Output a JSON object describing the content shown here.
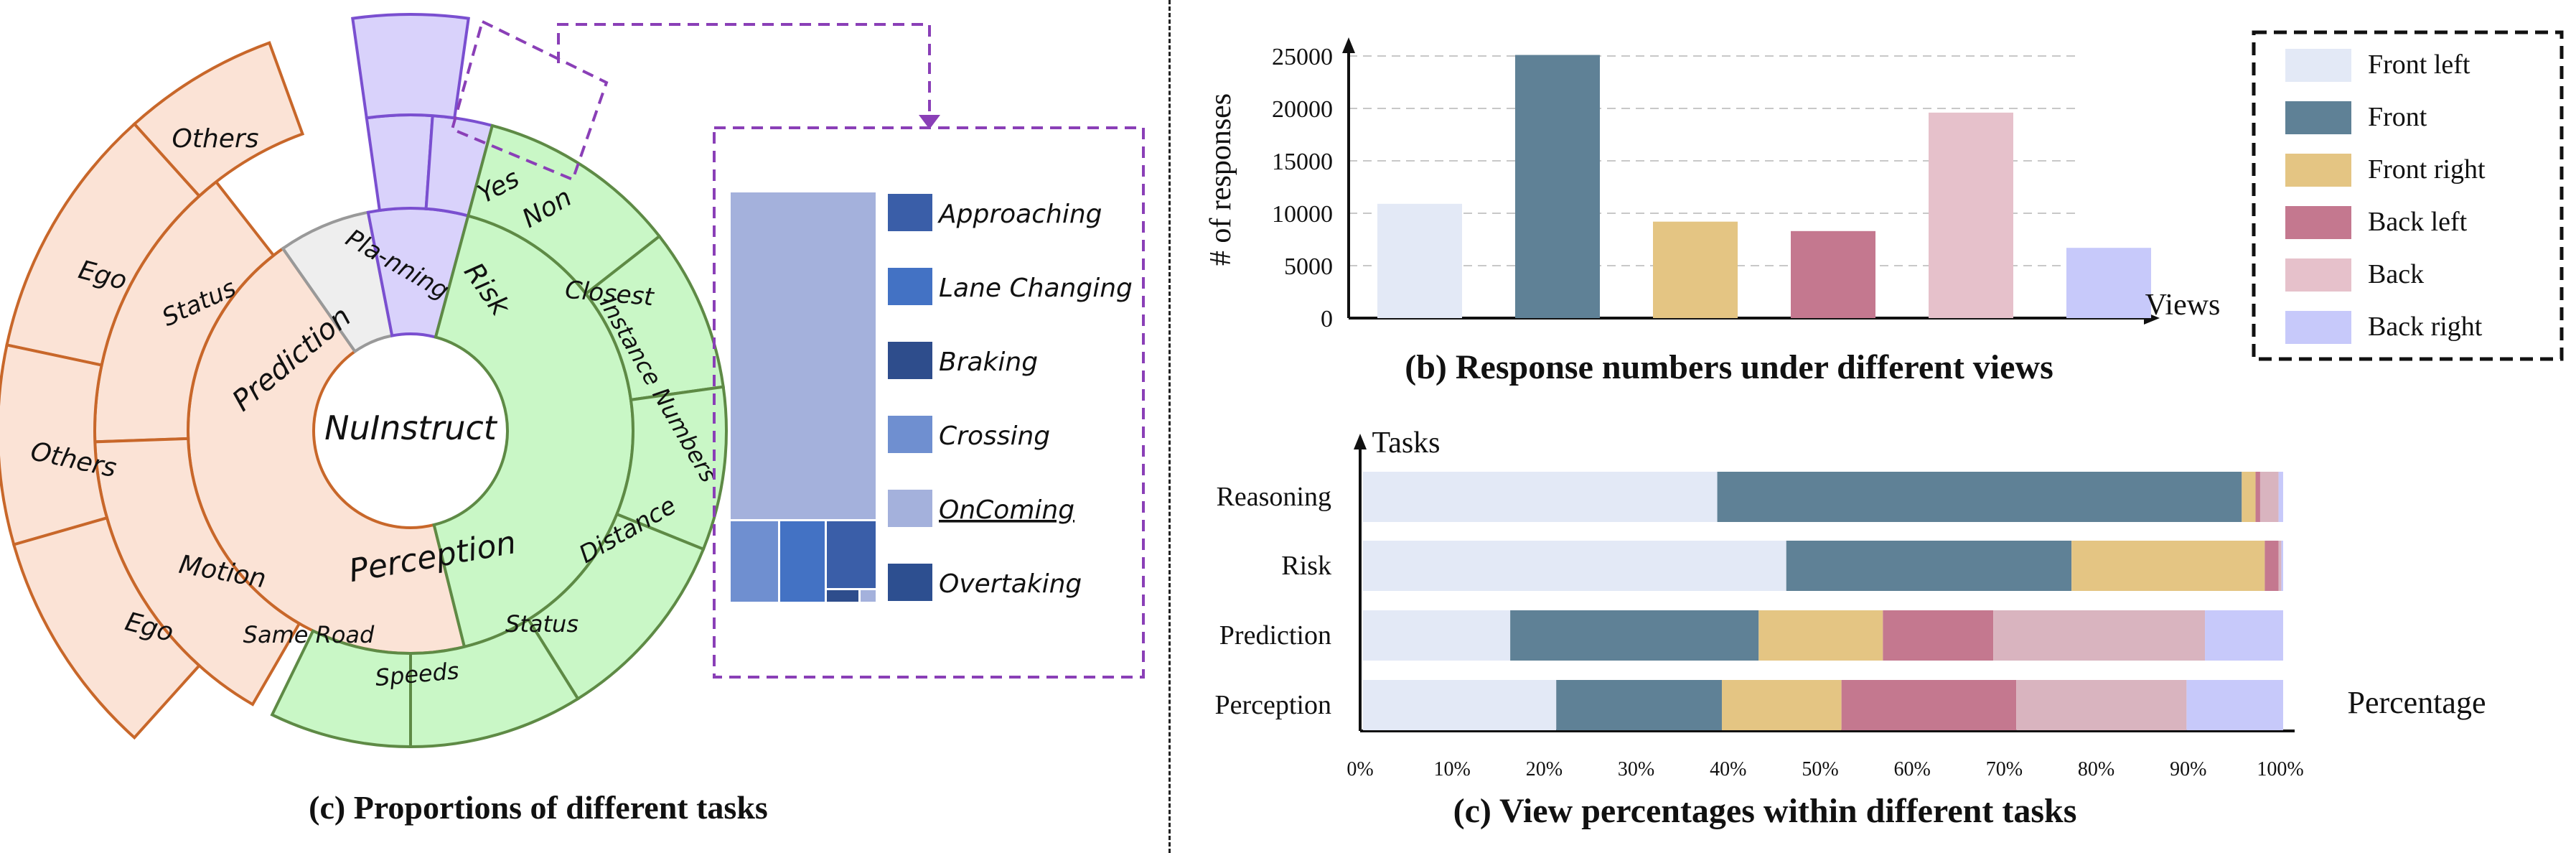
{
  "panel_left": {
    "caption": "(c) Proportions of different tasks",
    "center_label": "NuInstruct",
    "inner_ring": [
      "Prediction",
      "Pla-nning",
      "Risk",
      "Perception"
    ],
    "outer_ring": [
      "Status",
      "Motion",
      "Yes",
      "Non",
      "Closest",
      "Instance Numbers",
      "Distance",
      "Status",
      "Speeds",
      "Same Road"
    ],
    "outermost_ring": [
      "Others",
      "Ego",
      "Others",
      "Ego"
    ],
    "zoom_legend": [
      "Approaching",
      "Lane Changing",
      "Braking",
      "Crossing",
      "OnComing",
      "Overtaking"
    ]
  },
  "colors": {
    "prediction_fill": "#fbe3d6",
    "prediction_stroke": "#c8672a",
    "perception_fill": "#c9f7c6",
    "perception_stroke": "#5e8a45",
    "risk_fill": "#d9d2fb",
    "risk_stroke": "#7a4fd0",
    "planning_fill": "#eeeeee",
    "zoom_border": "#8a3fb7",
    "legend_colors": [
      "#3a5ea8",
      "#4372c4",
      "#2e4d8c",
      "#6f8fd0",
      "#a4b1dc",
      "#2d4f90"
    ]
  },
  "chart_data": [
    {
      "type": "bar",
      "title": "(b)  Response numbers under different views",
      "xlabel": "Views",
      "ylabel": "# of responses",
      "categories": [
        "Front left",
        "Front",
        "Front right",
        "Back left",
        "Back",
        "Back right"
      ],
      "values": [
        10900,
        25100,
        9200,
        8300,
        19600,
        6700
      ],
      "colors": [
        "#e3e9f6",
        "#5f8196",
        "#e4c583",
        "#c4788f",
        "#e6c1cb",
        "#c7c9fa"
      ],
      "yticks": [
        "0",
        "5000",
        "10000",
        "15000",
        "20000",
        "25000"
      ],
      "ylim": [
        0,
        25000
      ],
      "grid": true
    },
    {
      "type": "bar",
      "orientation": "horizontal-stacked",
      "title": "(c) View percentages within different tasks",
      "xlabel": "Percentage",
      "ylabel": "Tasks",
      "categories": [
        "Reasoning",
        "Risk",
        "Prediction",
        "Perception"
      ],
      "xticks": [
        "0%",
        "10%",
        "20%",
        "30%",
        "40%",
        "50%",
        "60%",
        "70%",
        "80%",
        "90%",
        "100%"
      ],
      "series": [
        {
          "name": "Front left",
          "values": [
            38.5,
            46.0,
            16.0,
            21.0
          ]
        },
        {
          "name": "Front",
          "values": [
            57.0,
            31.0,
            27.0,
            18.0
          ]
        },
        {
          "name": "Front right",
          "values": [
            1.5,
            21.0,
            13.5,
            13.0
          ]
        },
        {
          "name": "Back left",
          "values": [
            0.5,
            1.5,
            12.0,
            19.0
          ]
        },
        {
          "name": "Back",
          "values": [
            2.0,
            0.3,
            23.0,
            18.5
          ]
        },
        {
          "name": "Back right",
          "values": [
            0.5,
            0.2,
            8.5,
            10.5
          ]
        }
      ],
      "colors": [
        "#e3e9f6",
        "#5f8196",
        "#e4c583",
        "#c4788f",
        "#d9b4bf",
        "#c7c9fa"
      ],
      "legend": [
        "Front left",
        "Front",
        "Front right",
        "Back left",
        "Back",
        "Back right"
      ]
    }
  ]
}
